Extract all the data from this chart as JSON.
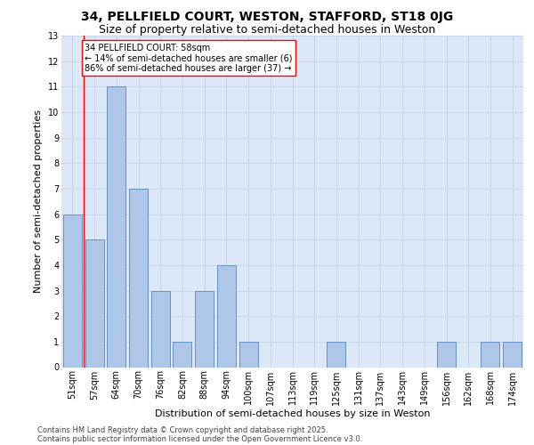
{
  "title_line1": "34, PELLFIELD COURT, WESTON, STAFFORD, ST18 0JG",
  "title_line2": "Size of property relative to semi-detached houses in Weston",
  "xlabel": "Distribution of semi-detached houses by size in Weston",
  "ylabel": "Number of semi-detached properties",
  "categories": [
    "51sqm",
    "57sqm",
    "64sqm",
    "70sqm",
    "76sqm",
    "82sqm",
    "88sqm",
    "94sqm",
    "100sqm",
    "107sqm",
    "113sqm",
    "119sqm",
    "125sqm",
    "131sqm",
    "137sqm",
    "143sqm",
    "149sqm",
    "156sqm",
    "162sqm",
    "168sqm",
    "174sqm"
  ],
  "values": [
    6,
    5,
    11,
    7,
    3,
    1,
    3,
    4,
    1,
    0,
    0,
    0,
    1,
    0,
    0,
    0,
    0,
    1,
    0,
    1,
    1
  ],
  "bar_color": "#aec6e8",
  "bar_edgecolor": "#5588bb",
  "highlight_index": 1,
  "highlight_color": "#ff0000",
  "annotation_box_text": "34 PELLFIELD COURT: 58sqm\n← 14% of semi-detached houses are smaller (6)\n86% of semi-detached houses are larger (37) →",
  "vline_x": 0.5,
  "ylim": [
    0,
    13
  ],
  "yticks": [
    0,
    1,
    2,
    3,
    4,
    5,
    6,
    7,
    8,
    9,
    10,
    11,
    12,
    13
  ],
  "grid_color": "#c8d4e8",
  "background_color": "#dce8f8",
  "footer_line1": "Contains HM Land Registry data © Crown copyright and database right 2025.",
  "footer_line2": "Contains public sector information licensed under the Open Government Licence v3.0.",
  "title_fontsize": 10,
  "subtitle_fontsize": 9,
  "axis_label_fontsize": 8,
  "tick_fontsize": 7,
  "annotation_fontsize": 7,
  "footer_fontsize": 6
}
